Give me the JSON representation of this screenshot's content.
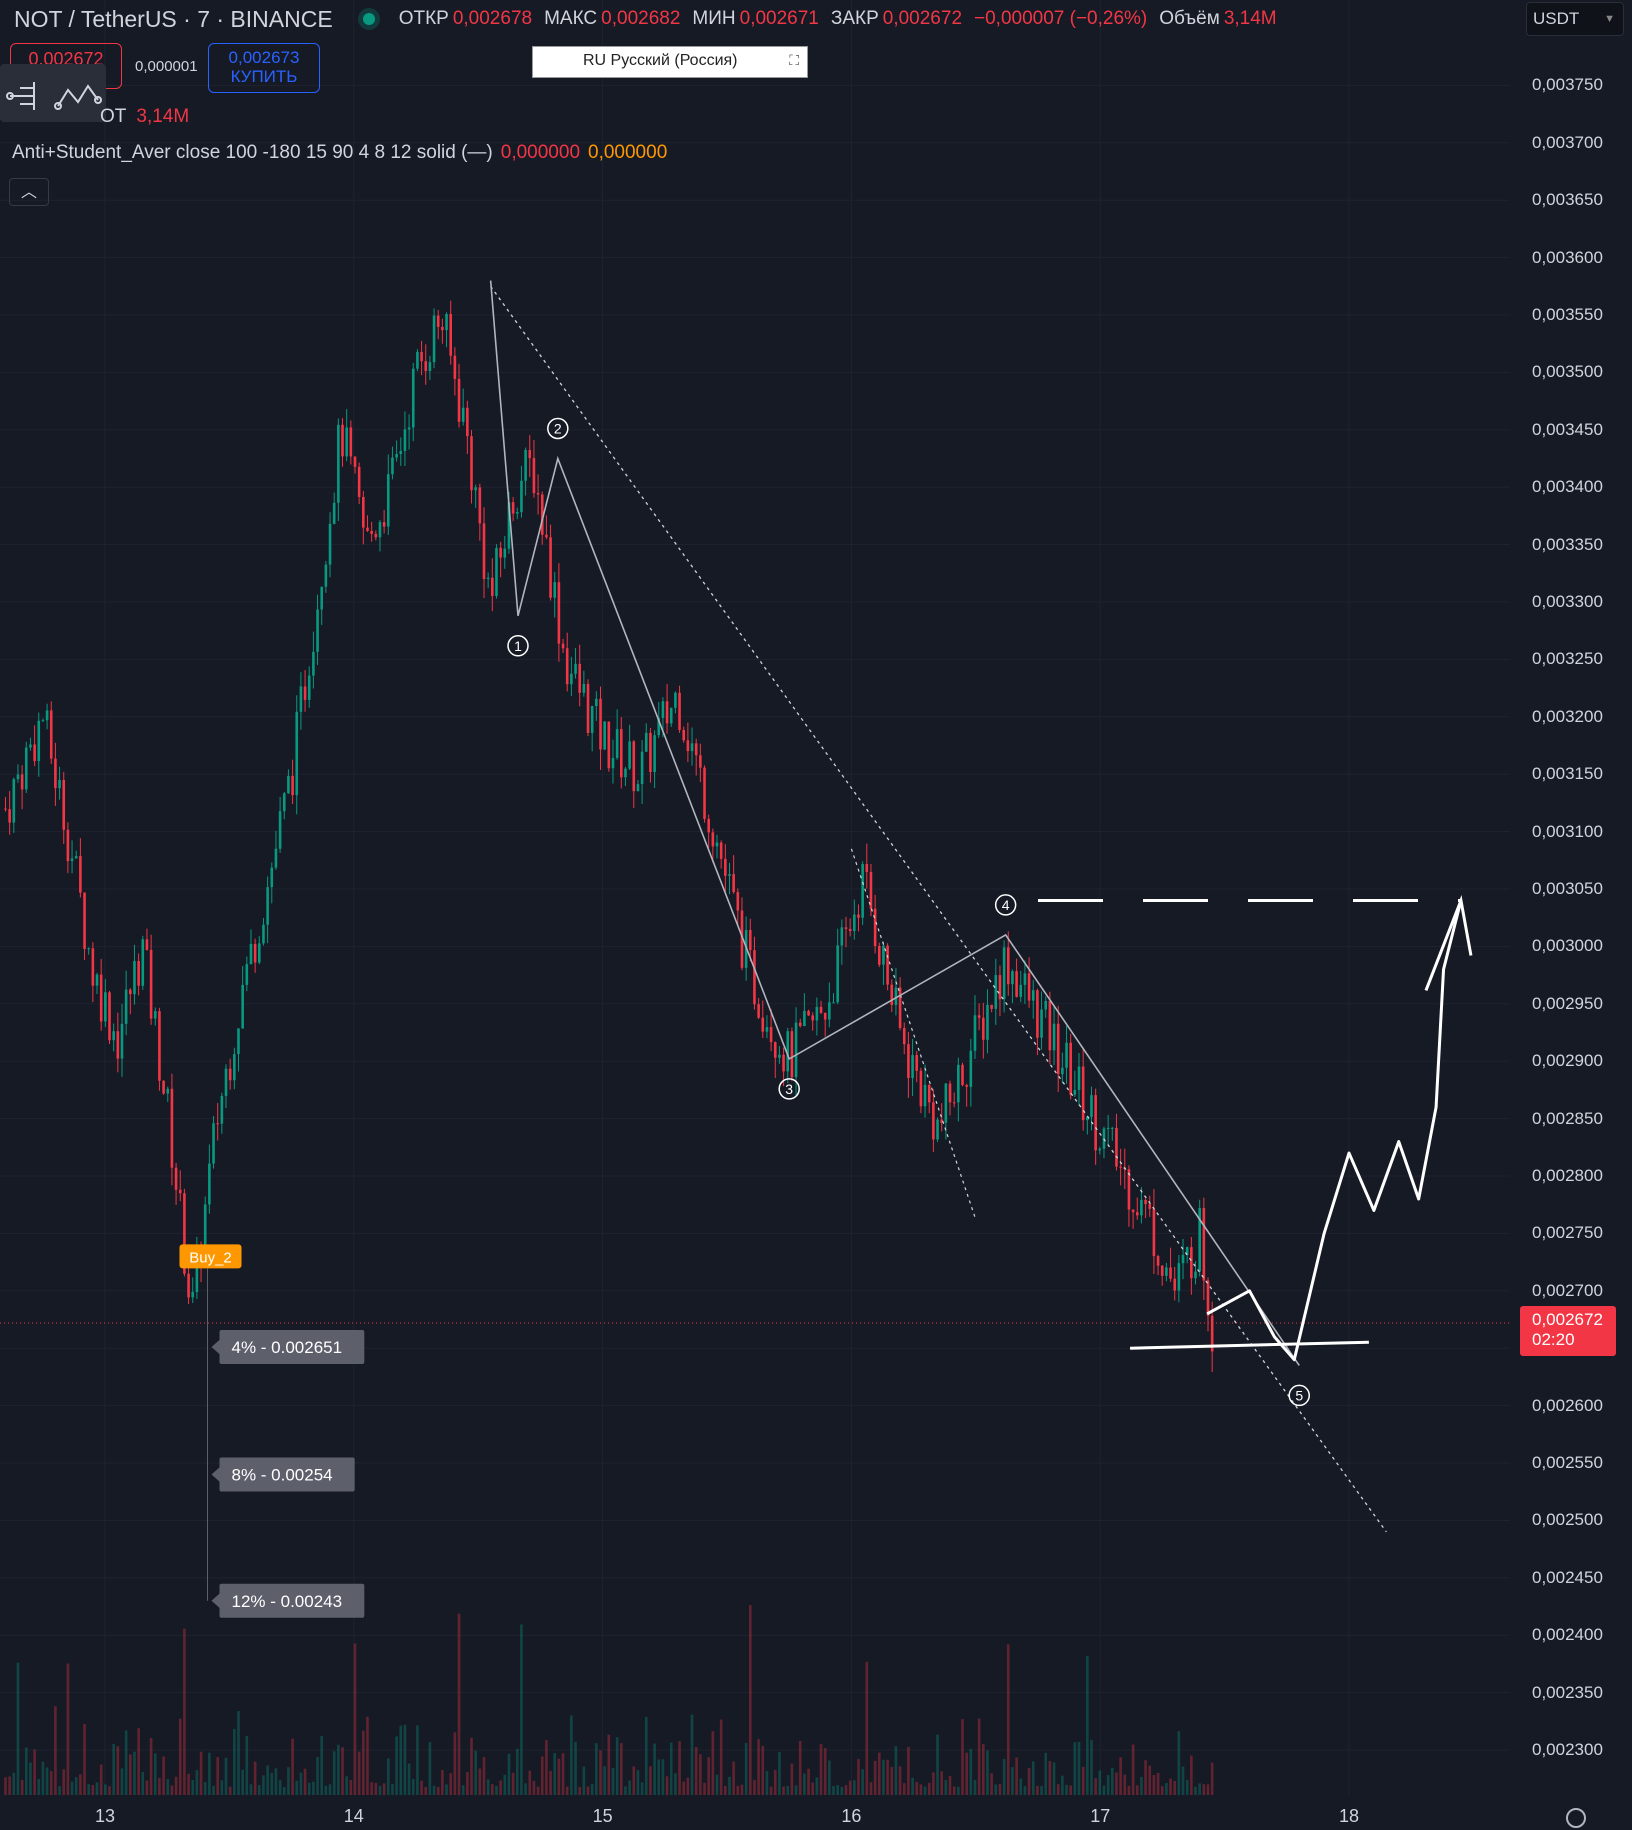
{
  "header": {
    "symbol": "NOT / TetherUS · 7 · BINANCE",
    "ohlc": [
      {
        "key": "ОТКР",
        "val": "0,002678"
      },
      {
        "key": "МАКС",
        "val": "0,002682"
      },
      {
        "key": "МИН",
        "val": "0,002671"
      },
      {
        "key": "ЗАКР",
        "val": "0,002672"
      }
    ],
    "change": "−0,000007 (−0,26%)",
    "volume_label": "Объём",
    "volume_value": "3,14M"
  },
  "trade": {
    "sell_price": "0,002672",
    "spread": "0,000001",
    "buy_price": "0,002673",
    "buy_label": "КУПИТЬ"
  },
  "volume_row": {
    "label": "OT",
    "value": "3,14M"
  },
  "indicator": {
    "name": "Anti+Student_Aver close 100 -180 15 90 4 8 12 solid (—)",
    "value_a": "0,000000",
    "value_b": "0,000000"
  },
  "collapse_icon": "chevron-up-icon",
  "language_box": "RU Русский (Россия)",
  "currency": "USDT",
  "colors": {
    "bg": "#161a25",
    "up": "#089981",
    "down": "#f23645",
    "accent": "#2962ff",
    "orange": "#ff9800"
  },
  "chart_data": {
    "type": "candlestick",
    "title": "NOT / TetherUS · 7 · BINANCE",
    "ylim": [
      0.00227,
      0.00378
    ],
    "y_ticks": [
      "0,003750",
      "0,003700",
      "0,003650",
      "0,003600",
      "0,003550",
      "0,003500",
      "0,003450",
      "0,003400",
      "0,003350",
      "0,003300",
      "0,003250",
      "0,003200",
      "0,003150",
      "0,003100",
      "0,003050",
      "0,003000",
      "0,002950",
      "0,002900",
      "0,002850",
      "0,002800",
      "0,002750",
      "0,002700",
      "0,002650",
      "0,002600",
      "0,002550",
      "0,002500",
      "0,002450",
      "0,002400",
      "0,002350",
      "0,002300"
    ],
    "x_ticks": [
      "13",
      "14",
      "15",
      "16",
      "17",
      "18"
    ],
    "x_domain": [
      12.6,
      18.45
    ],
    "current_price": "0,002672",
    "countdown": "02:20",
    "price_path": [
      [
        12.6,
        0.00312
      ],
      [
        12.75,
        0.0032
      ],
      [
        12.85,
        0.0031
      ],
      [
        12.95,
        0.00298
      ],
      [
        13.05,
        0.00292
      ],
      [
        13.15,
        0.003
      ],
      [
        13.25,
        0.00286
      ],
      [
        13.35,
        0.00268
      ],
      [
        13.45,
        0.00285
      ],
      [
        13.55,
        0.00296
      ],
      [
        13.65,
        0.00305
      ],
      [
        13.75,
        0.00315
      ],
      [
        13.85,
        0.0033
      ],
      [
        13.95,
        0.00345
      ],
      [
        14.05,
        0.00335
      ],
      [
        14.15,
        0.0034
      ],
      [
        14.25,
        0.0035
      ],
      [
        14.35,
        0.00355
      ],
      [
        14.45,
        0.00345
      ],
      [
        14.55,
        0.0033
      ],
      [
        14.65,
        0.0034
      ],
      [
        14.72,
        0.00342
      ],
      [
        14.85,
        0.00325
      ],
      [
        15.0,
        0.00318
      ],
      [
        15.15,
        0.00315
      ],
      [
        15.3,
        0.00322
      ],
      [
        15.45,
        0.0031
      ],
      [
        15.6,
        0.00297
      ],
      [
        15.75,
        0.0029
      ],
      [
        15.9,
        0.00295
      ],
      [
        16.05,
        0.00306
      ],
      [
        16.2,
        0.00292
      ],
      [
        16.35,
        0.00284
      ],
      [
        16.5,
        0.00292
      ],
      [
        16.62,
        0.00299
      ],
      [
        16.75,
        0.00294
      ],
      [
        16.9,
        0.00288
      ],
      [
        17.05,
        0.00282
      ],
      [
        17.2,
        0.00276
      ],
      [
        17.3,
        0.0027
      ],
      [
        17.4,
        0.00275
      ],
      [
        17.45,
        0.00267
      ]
    ],
    "signal": {
      "label": "Buy_2",
      "x": 13.42,
      "price": 0.00273
    },
    "targets": [
      {
        "label": "4% - 0.002651",
        "price": 0.002651
      },
      {
        "label": "8% - 0.00254",
        "price": 0.00254
      },
      {
        "label": "12% - 0.00243",
        "price": 0.00243
      }
    ],
    "wave_points": [
      {
        "label": "1",
        "x": 14.66,
        "price": 0.003288
      },
      {
        "label": "2",
        "x": 14.82,
        "price": 0.003425
      },
      {
        "label": "3",
        "x": 15.75,
        "price": 0.002902
      },
      {
        "label": "4",
        "x": 16.62,
        "price": 0.00301
      },
      {
        "label": "5",
        "x": 17.8,
        "price": 0.002635
      }
    ],
    "upper_trendline": [
      [
        14.55,
        0.003575
      ],
      [
        18.15,
        0.00249
      ]
    ],
    "channel_line": [
      [
        16.0,
        0.003085
      ],
      [
        16.5,
        0.002762
      ]
    ],
    "lower_channel": [
      [
        15.75,
        0.002902
      ],
      [
        16.5,
        0.002762
      ]
    ],
    "resistance_level": 0.00304,
    "support_level": 0.00265,
    "forecast_path": [
      [
        17.43,
        0.00268
      ],
      [
        17.6,
        0.0027
      ],
      [
        17.7,
        0.00266
      ],
      [
        17.78,
        0.00264
      ],
      [
        17.9,
        0.00275
      ],
      [
        18.0,
        0.00282
      ],
      [
        18.1,
        0.00277
      ],
      [
        18.2,
        0.00283
      ],
      [
        18.28,
        0.00278
      ],
      [
        18.35,
        0.00286
      ],
      [
        18.38,
        0.00298
      ],
      [
        18.45,
        0.00304
      ]
    ]
  }
}
